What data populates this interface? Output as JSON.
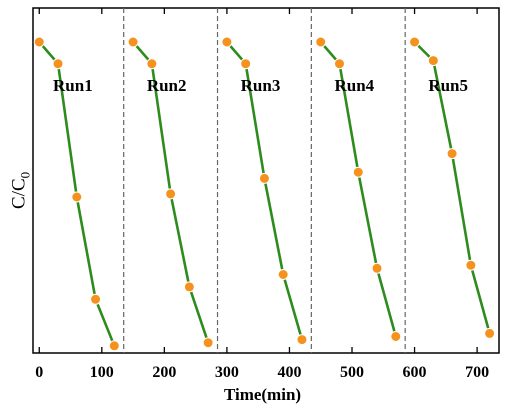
{
  "chart_data": {
    "type": "line",
    "xlabel": "Time(min)",
    "ylabel_main": "C/C",
    "ylabel_sub": "0",
    "xlim": [
      -10,
      735
    ],
    "ylim": [
      0,
      1
    ],
    "x_ticks": [
      0,
      100,
      200,
      300,
      400,
      500,
      600,
      700
    ],
    "y_ticks_labeled": false,
    "run_separators": [
      135,
      285,
      435,
      585
    ],
    "grid": false,
    "legend": "none",
    "line_color": "#2e8b1e",
    "marker_color": "#f5921e",
    "series": [
      {
        "name": "Run1",
        "x": [
          0,
          30,
          60,
          90,
          120
        ],
        "y": [
          1.0,
          0.93,
          0.5,
          0.17,
          0.02
        ]
      },
      {
        "name": "Run2",
        "x": [
          150,
          180,
          210,
          240,
          270
        ],
        "y": [
          1.0,
          0.93,
          0.51,
          0.21,
          0.03
        ]
      },
      {
        "name": "Run3",
        "x": [
          300,
          330,
          360,
          390,
          420
        ],
        "y": [
          1.0,
          0.93,
          0.56,
          0.25,
          0.04
        ]
      },
      {
        "name": "Run4",
        "x": [
          450,
          480,
          510,
          540,
          570
        ],
        "y": [
          1.0,
          0.93,
          0.58,
          0.27,
          0.05
        ]
      },
      {
        "name": "Run5",
        "x": [
          600,
          630,
          660,
          690,
          720
        ],
        "y": [
          1.0,
          0.94,
          0.64,
          0.28,
          0.06
        ]
      }
    ]
  }
}
